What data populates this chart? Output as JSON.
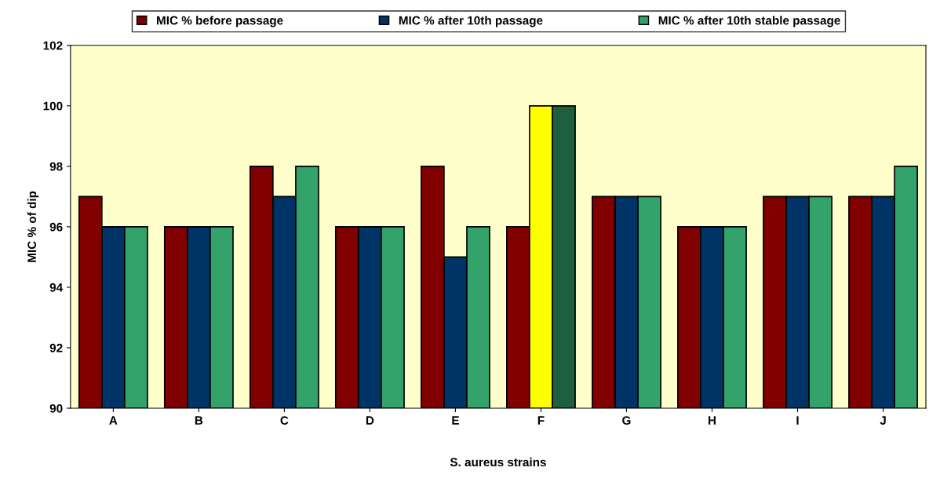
{
  "chart_data": {
    "type": "bar",
    "ylabel": "MIC % of dip",
    "xlabel": "S. aureus strains",
    "categories": [
      "A",
      "B",
      "C",
      "D",
      "E",
      "F",
      "G",
      "H",
      "I",
      "J"
    ],
    "series": [
      {
        "name": "MIC % before passage",
        "color": "#800000",
        "values": [
          97,
          96,
          98,
          96,
          98,
          96,
          97,
          96,
          97,
          97
        ]
      },
      {
        "name": "MIC % after 10th passage",
        "color": "#003366",
        "colors": [
          "#003366",
          "#003366",
          "#003366",
          "#003366",
          "#003366",
          "#ffff00",
          "#003366",
          "#003366",
          "#003366",
          "#003366"
        ],
        "values": [
          96,
          96,
          97,
          96,
          95,
          100,
          97,
          96,
          97,
          97
        ]
      },
      {
        "name": "MIC % after 10th stable passage",
        "color": "#33a36b",
        "colors": [
          "#33a36b",
          "#33a36b",
          "#33a36b",
          "#33a36b",
          "#33a36b",
          "#1f5f3f",
          "#33a36b",
          "#33a36b",
          "#33a36b",
          "#33a36b"
        ],
        "values": [
          96,
          96,
          98,
          96,
          96,
          100,
          97,
          96,
          97,
          98
        ]
      }
    ],
    "ylim": [
      90,
      102
    ],
    "yticks": [
      90,
      92,
      94,
      96,
      98,
      100,
      102
    ],
    "grid": false,
    "legend": "top"
  }
}
